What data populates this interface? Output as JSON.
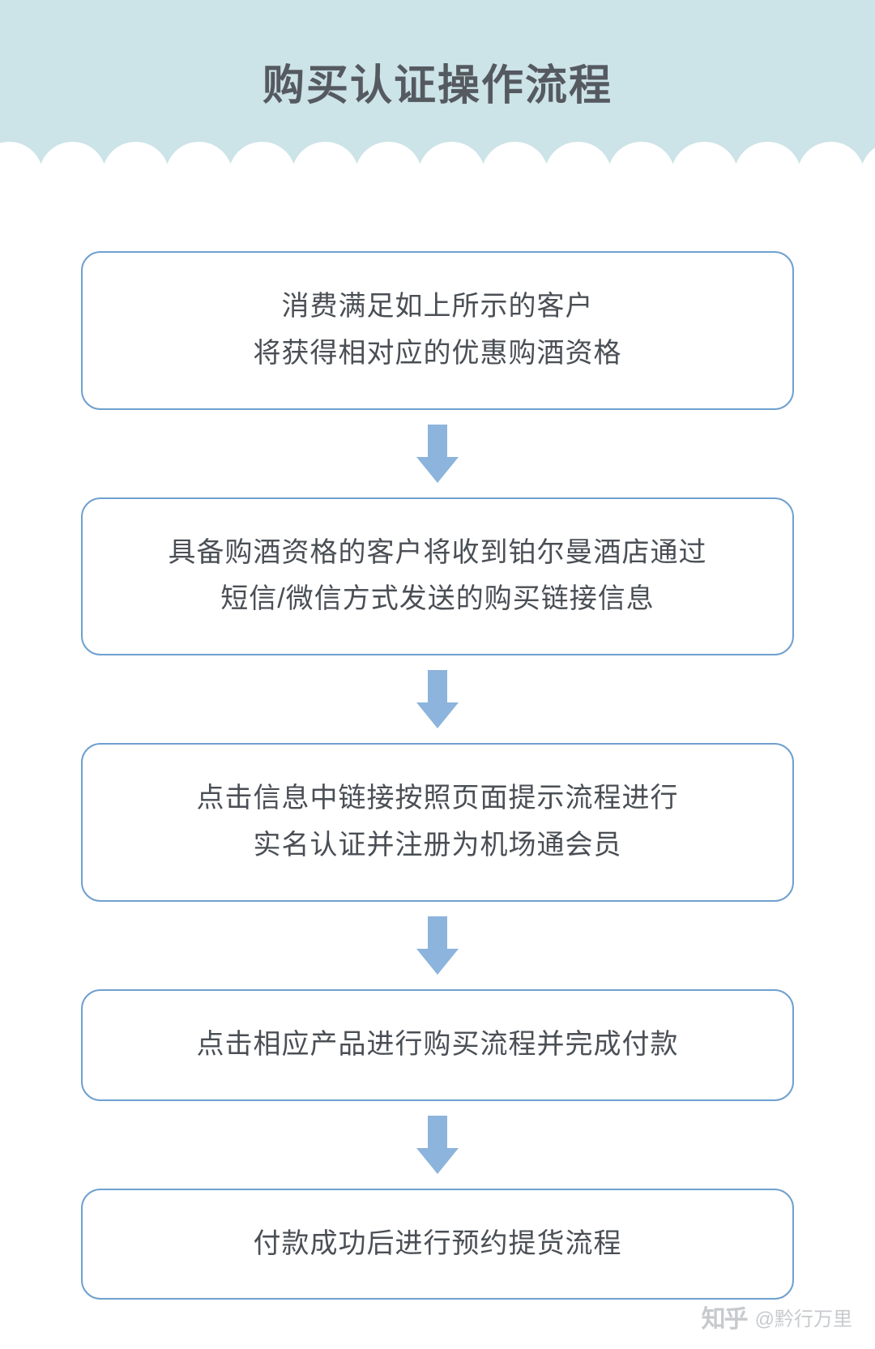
{
  "header": {
    "title": "购买认证操作流程",
    "background_color": "#cce3e8",
    "title_color": "#555a60",
    "title_fontsize": 52,
    "scallop_color": "#ffffff"
  },
  "flowchart": {
    "type": "flowchart",
    "box_border_color": "#6fa0cf",
    "box_border_radius": 24,
    "box_border_width": 2,
    "text_color": "#4a4f55",
    "text_fontsize": 34,
    "arrow_color": "#8cb4dc",
    "arrow_stem_width": 24,
    "arrow_stem_height": 44,
    "arrow_head_width": 52,
    "arrow_head_height": 32,
    "background_color": "#ffffff",
    "nodes": [
      {
        "lines": [
          "消费满足如上所示的客户",
          "将获得相对应的优惠购酒资格"
        ]
      },
      {
        "lines": [
          "具备购酒资格的客户将收到铂尔曼酒店通过",
          "短信/微信方式发送的购买链接信息"
        ]
      },
      {
        "lines": [
          "点击信息中链接按照页面提示流程进行",
          "实名认证并注册为机场通会员"
        ]
      },
      {
        "lines": [
          "点击相应产品进行购买流程并完成付款"
        ]
      },
      {
        "lines": [
          "付款成功后进行预约提货流程"
        ]
      }
    ]
  },
  "watermark": {
    "logo_text": "知乎",
    "user_text": "@黔行万里",
    "color": "#9aa0a6"
  }
}
